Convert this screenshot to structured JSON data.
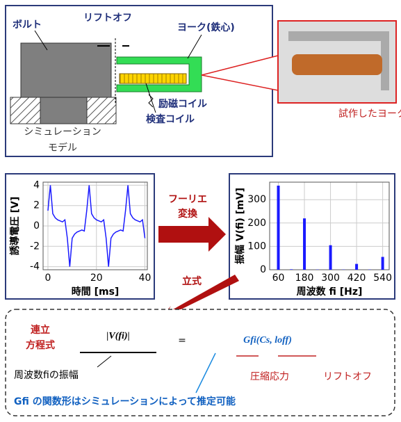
{
  "diagram": {
    "bolt": "ボルト",
    "liftoff": "リフトオフ",
    "yoke": "ヨーク(鉄心)",
    "excitation_coil": "励磁コイル",
    "inspection_coil": "検査コイル",
    "simulation_model": [
      "シミュレーション",
      "モデル"
    ],
    "prototype_caption": "試作したヨーク"
  },
  "arrows": {
    "fourier": [
      "フーリエ",
      "変換"
    ],
    "formulation": "立式"
  },
  "chart_data": [
    {
      "type": "line",
      "xlabel": "時間 [ms]",
      "ylabel": "誘導電圧 [V]",
      "color": "#1a1aff",
      "x": [
        0,
        1,
        2,
        3,
        4,
        5,
        6,
        7,
        8,
        9,
        10,
        11,
        12,
        13,
        14,
        15,
        16,
        17,
        18,
        19,
        20,
        21,
        22,
        23,
        24,
        25,
        26,
        27,
        28,
        29,
        30,
        31,
        32,
        33,
        34,
        35,
        36,
        37,
        38,
        39,
        40
      ],
      "values": [
        1.5,
        4,
        1.2,
        0.8,
        0.6,
        0.5,
        0.4,
        0.6,
        -1.2,
        -4,
        -1.2,
        -0.8,
        -0.6,
        -0.5,
        -0.4,
        -0.5,
        1.5,
        4,
        1.2,
        0.8,
        0.6,
        0.5,
        0.4,
        0.6,
        -1.2,
        -4,
        -1.2,
        -0.8,
        -0.6,
        -0.5,
        -0.4,
        -0.5,
        1.5,
        4,
        1.2,
        0.8,
        0.6,
        0.5,
        0.4,
        0.6,
        -1.2
      ],
      "xlim": [
        -2,
        41
      ],
      "xticks": [
        0,
        20,
        40
      ],
      "ylim": [
        -4.3,
        4.3
      ],
      "yticks": [
        4,
        2,
        0,
        -2,
        -4
      ],
      "grid": true
    },
    {
      "type": "bar",
      "xlabel": "周波数 fi [Hz]",
      "ylabel": "振幅 V(fi) [mV]",
      "color": "#1a1aff",
      "x": [
        60,
        120,
        180,
        240,
        300,
        360,
        420,
        480,
        540
      ],
      "values": [
        360,
        2,
        220,
        1,
        105,
        1,
        25,
        1,
        55
      ],
      "xlim": [
        20,
        570
      ],
      "xticks": [
        60,
        180,
        300,
        420,
        540
      ],
      "ylim": [
        0,
        375
      ],
      "yticks": [
        0,
        100,
        200,
        300
      ],
      "grid": true
    }
  ],
  "equation": {
    "label": [
      "連立",
      "方程式"
    ],
    "lhs": "|V(fi)|",
    "equals": "=",
    "rhs": "Gfi(Cs, loff)",
    "lhs_note": "周波数fiの振幅",
    "stress_note": "圧縮応力",
    "liftoff_note": "リフトオフ",
    "footer": "Gfi の関数形はシミュレーションによって推定可能"
  }
}
